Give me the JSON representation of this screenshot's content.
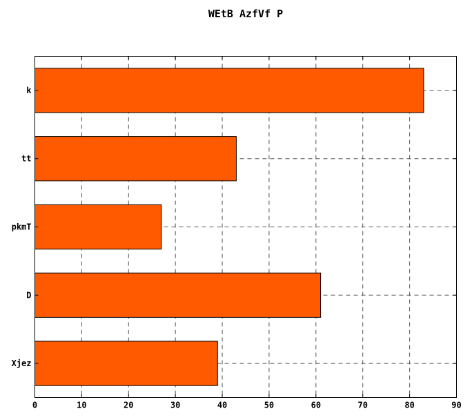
{
  "chart_data": {
    "type": "bar",
    "orientation": "horizontal",
    "title": "WEtB AzfVf P",
    "categories": [
      "k",
      "tt",
      "pkmT",
      "D",
      "Xjez"
    ],
    "values": [
      83,
      43,
      27,
      61,
      39
    ],
    "xlim": [
      0,
      90
    ],
    "xticks": [
      0,
      10,
      20,
      30,
      40,
      50,
      60,
      70,
      80,
      90
    ],
    "grid": true,
    "bar_color": "#ff5a00",
    "grid_color": "#555555"
  }
}
